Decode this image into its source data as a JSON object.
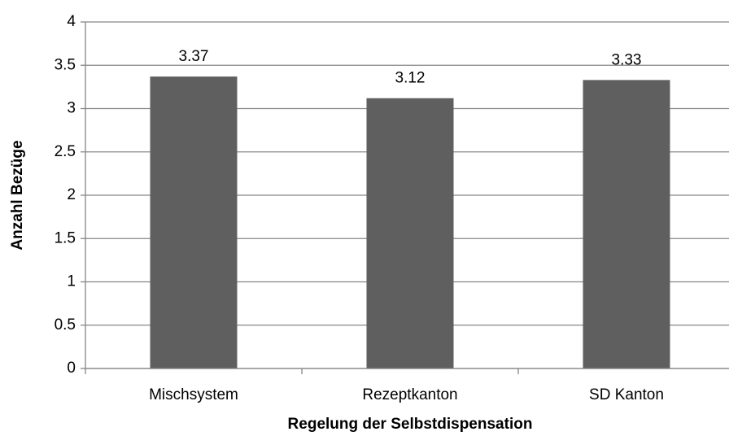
{
  "chart_data": {
    "type": "bar",
    "x_label": "Regelung der Selbstdispensation",
    "y_label": "Anzahl Bezüge",
    "categories": [
      "Mischsystem",
      "Rezeptkanton",
      "SD Kanton"
    ],
    "values": [
      3.37,
      3.12,
      3.33
    ],
    "color": "#5f5f5f",
    "ylim": [
      0,
      4
    ],
    "yticks": [
      0,
      0.5,
      1,
      1.5,
      2,
      2.5,
      3,
      3.5,
      4
    ],
    "grid": true
  }
}
